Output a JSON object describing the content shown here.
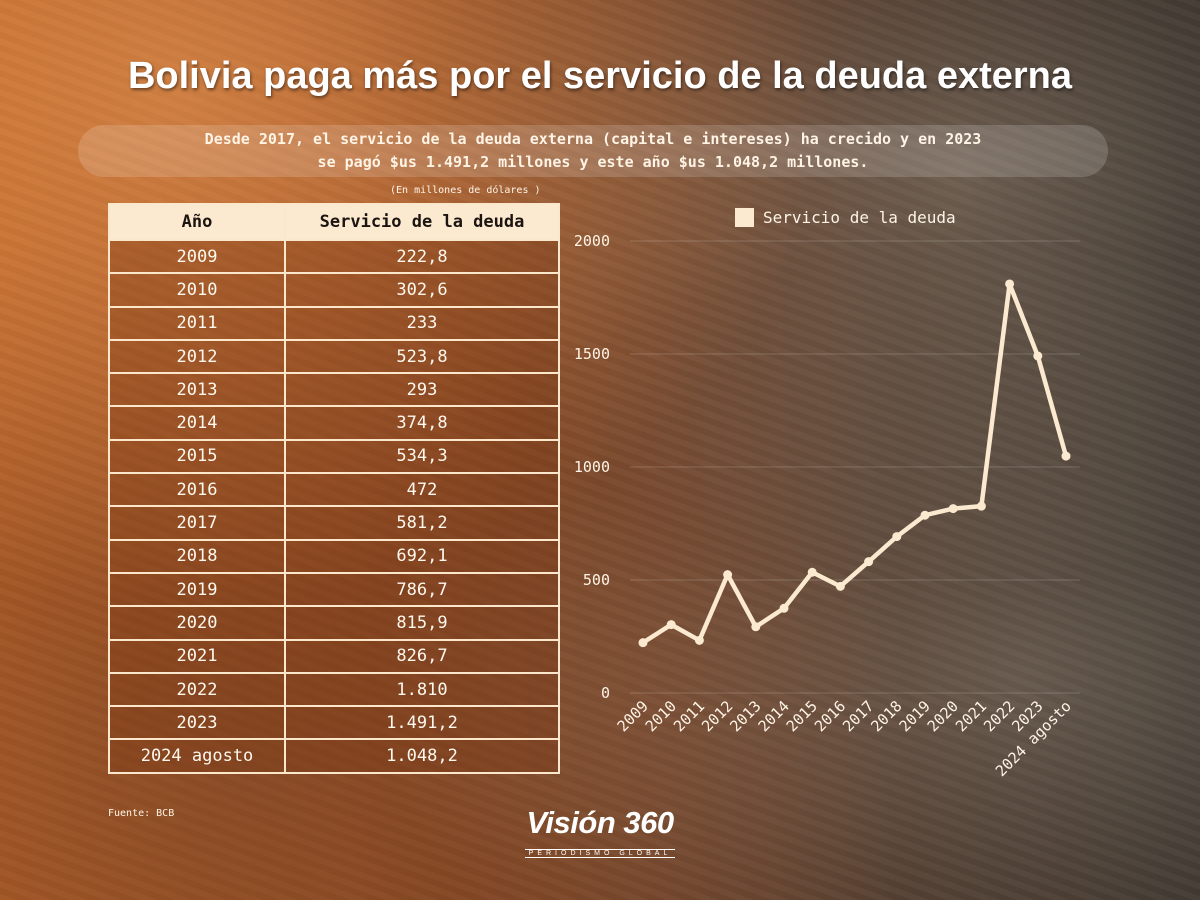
{
  "header": {
    "title": "Bolivia paga más por el servicio de la deuda externa",
    "subtitle_line1": "Desde 2017, el servicio de la deuda externa (capital e intereses) ha crecido y en 2023",
    "subtitle_line2": "se pagó $us 1.491,2 millones y este año $us 1.048,2 millones.",
    "units_note": "(En millones de dólares )"
  },
  "table": {
    "col_year": "Año",
    "col_value": "Servicio de la deuda",
    "rows": [
      {
        "year": "2009",
        "value": "222,8"
      },
      {
        "year": "2010",
        "value": "302,6"
      },
      {
        "year": "2011",
        "value": "233"
      },
      {
        "year": "2012",
        "value": "523,8"
      },
      {
        "year": "2013",
        "value": "293"
      },
      {
        "year": "2014",
        "value": "374,8"
      },
      {
        "year": "2015",
        "value": "534,3"
      },
      {
        "year": "2016",
        "value": "472"
      },
      {
        "year": "2017",
        "value": "581,2"
      },
      {
        "year": "2018",
        "value": "692,1"
      },
      {
        "year": "2019",
        "value": "786,7"
      },
      {
        "year": "2020",
        "value": "815,9"
      },
      {
        "year": "2021",
        "value": "826,7"
      },
      {
        "year": "2022",
        "value": "1.810"
      },
      {
        "year": "2023",
        "value": "1.491,2"
      },
      {
        "year": "2024 agosto",
        "value": "1.048,2"
      }
    ]
  },
  "footer": {
    "source": "Fuente: BCB",
    "logo_text": "Visión 360",
    "logo_tagline": "PERIODISMO GLOBAL"
  },
  "colors": {
    "line": "#fbe9d0",
    "header_fill": "#fbe9d0",
    "text": "#fff8ee"
  },
  "chart_data": {
    "type": "line",
    "categories": [
      "2009",
      "2010",
      "2011",
      "2012",
      "2013",
      "2014",
      "2015",
      "2016",
      "2017",
      "2018",
      "2019",
      "2020",
      "2021",
      "2022",
      "2023",
      "2024 agosto"
    ],
    "series": [
      {
        "name": "Servicio de la deuda",
        "values": [
          222.8,
          302.6,
          233,
          523.8,
          293,
          374.8,
          534.3,
          472,
          581.2,
          692.1,
          786.7,
          815.9,
          826.7,
          1810,
          1491.2,
          1048.2
        ]
      }
    ],
    "yticks": [
      0,
      500,
      1000,
      1500,
      2000
    ],
    "ylim": [
      0,
      2000
    ],
    "legend": "top",
    "grid": true
  }
}
